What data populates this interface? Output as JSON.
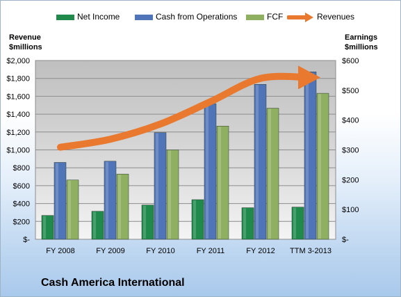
{
  "colors": {
    "net_income": "#1f8a4c",
    "cash_ops": "#4f74b8",
    "fcf": "#8fb060",
    "revenues": "#e8792e"
  },
  "chart_data": {
    "type": "bar",
    "title": "",
    "left_axis_title": [
      "Revenue",
      "$millions"
    ],
    "right_axis_title": [
      "Earnings",
      "$millions"
    ],
    "categories": [
      "FY 2008",
      "FY 2009",
      "FY 2010",
      "FY 2011",
      "FY 2012",
      "TTM 3-2013"
    ],
    "left_ylim": [
      0,
      2000
    ],
    "left_ticks": [
      0,
      200,
      400,
      600,
      800,
      1000,
      1200,
      1400,
      1600,
      1800,
      2000
    ],
    "left_tick_labels": [
      "$-",
      "$200",
      "$400",
      "$600",
      "$800",
      "$1,000",
      "$1,200",
      "$1,400",
      "$1,600",
      "$1,800",
      "$2,000"
    ],
    "right_ylim": [
      0,
      600
    ],
    "right_ticks": [
      0,
      100,
      200,
      300,
      400,
      500,
      600
    ],
    "right_tick_labels": [
      "$-",
      "$100",
      "$200",
      "$300",
      "$400",
      "$500",
      "$600"
    ],
    "series": [
      {
        "name": "Net Income",
        "axis": "right",
        "kind": "bar",
        "values": [
          80,
          94,
          115,
          133,
          106,
          108
        ]
      },
      {
        "name": "Cash from Operations",
        "axis": "right",
        "kind": "bar",
        "values": [
          258,
          262,
          358,
          455,
          520,
          562
        ]
      },
      {
        "name": "FCF",
        "axis": "right",
        "kind": "bar",
        "values": [
          199,
          219,
          300,
          380,
          440,
          490
        ]
      },
      {
        "name": "Revenues",
        "axis": "left",
        "kind": "line",
        "values": [
          1030,
          1120,
          1290,
          1540,
          1800,
          1810
        ]
      }
    ],
    "grid": true,
    "legend_position": "top"
  },
  "brand": "Cash America International"
}
